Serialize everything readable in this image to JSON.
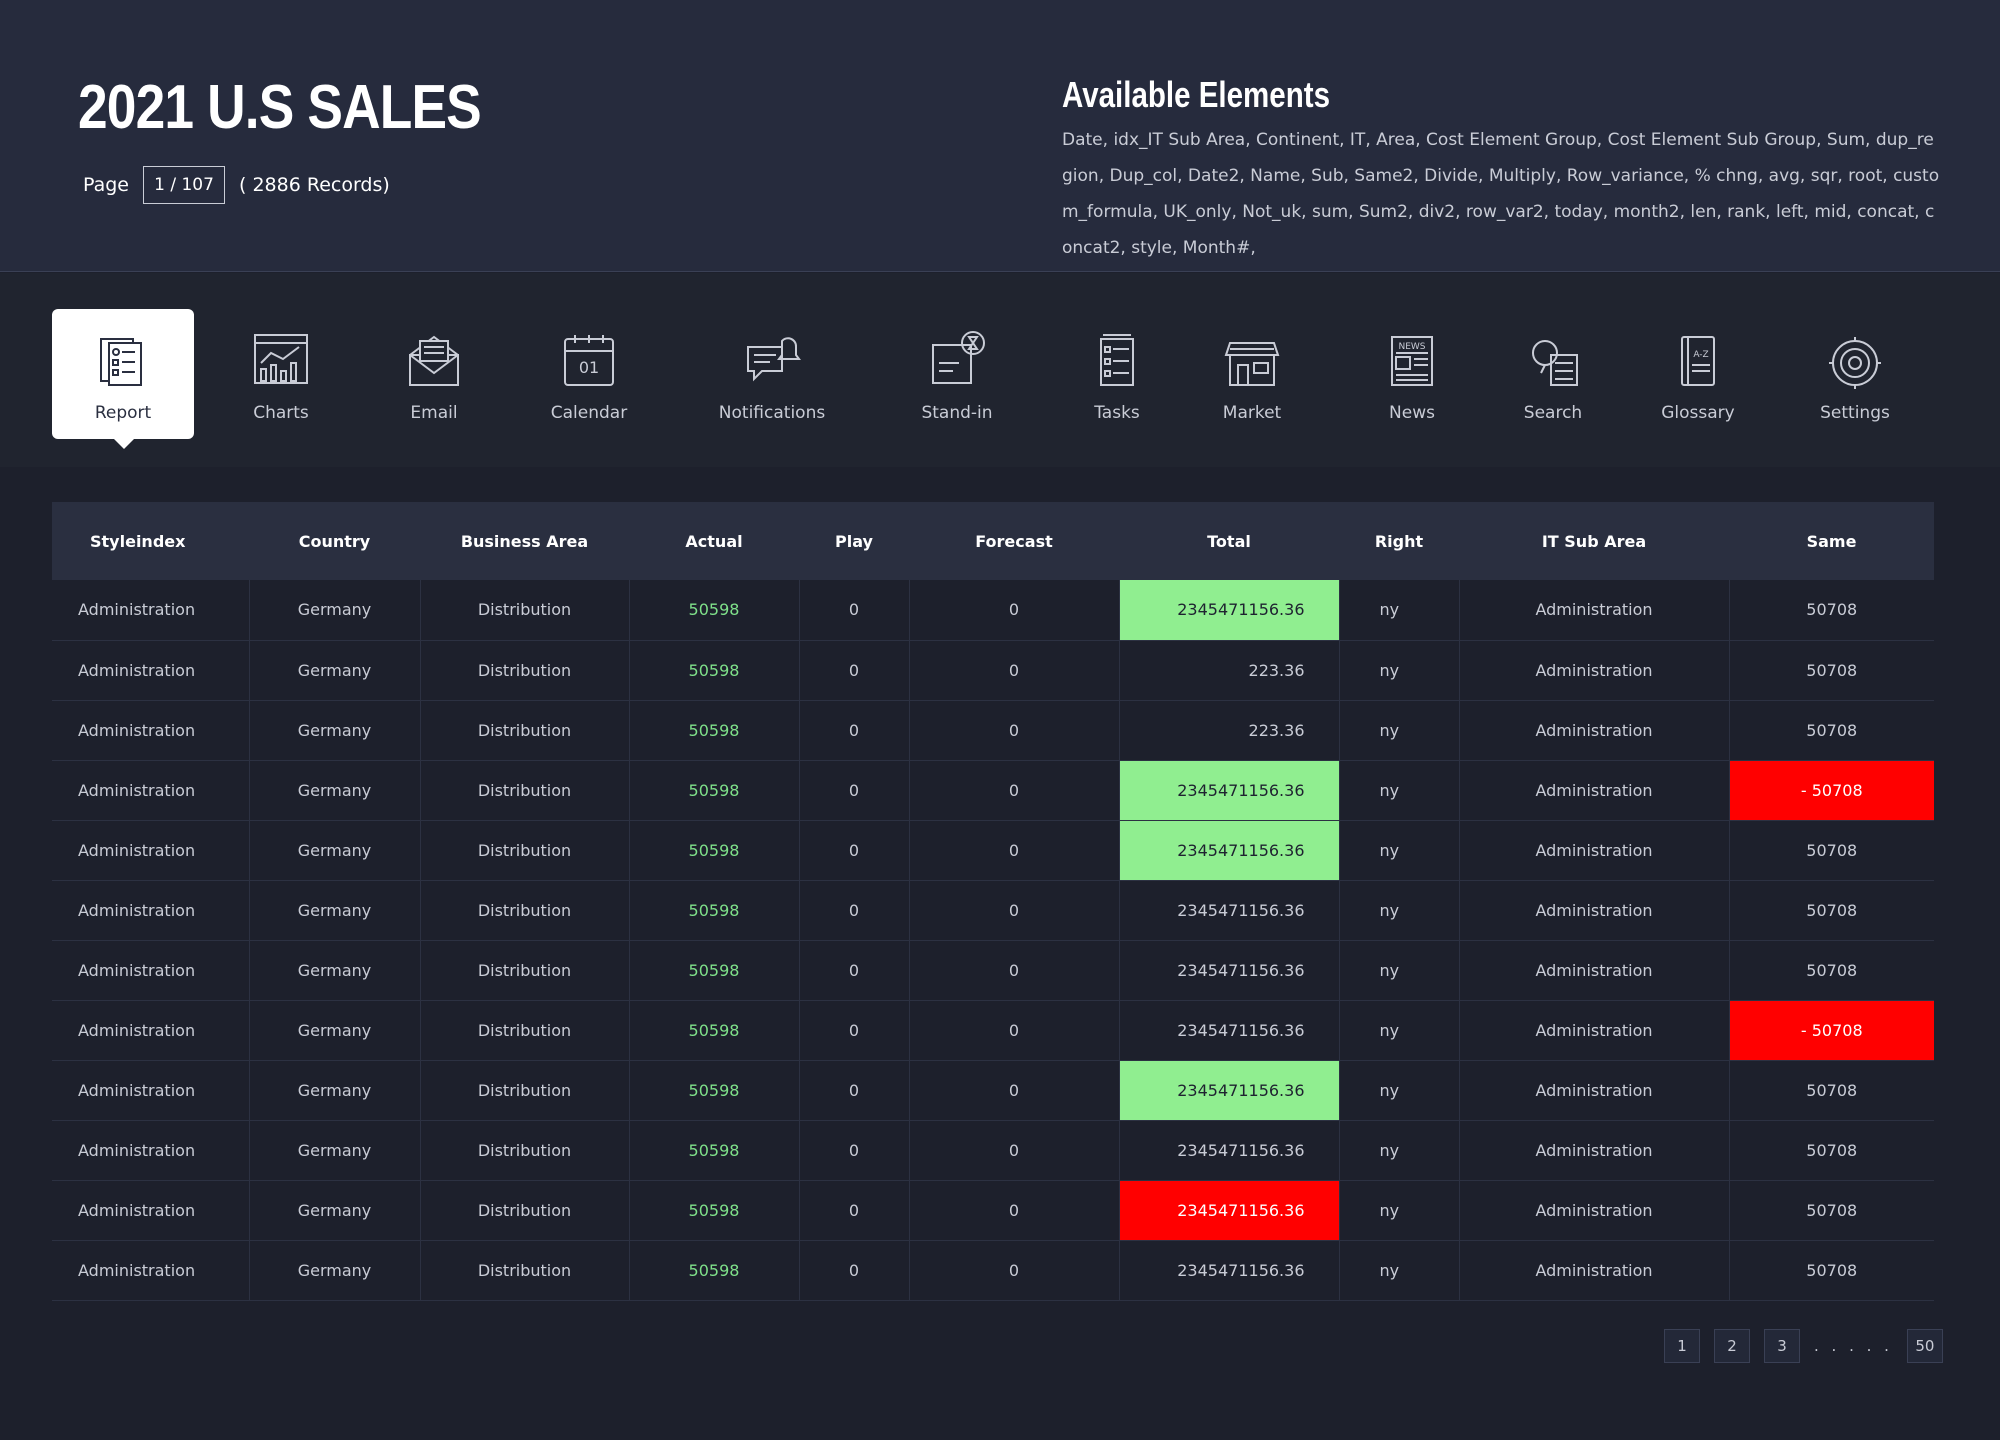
{
  "header": {
    "title": "2021 U.S SALES",
    "page_label": "Page",
    "page_value": "1 / 107",
    "records": "( 2886 Records)",
    "available_title": "Available Elements",
    "available_text": "Date, idx_IT Sub Area, Continent, IT, Area, Cost Element Group, Cost Element Sub Group, Sum, dup_region, Dup_col, Date2, Name, Sub, Same2, Divide, Multiply, Row_variance, % chng, avg, sqr, root, custom_formula, UK_only, Not_uk, sum, Sum2, div2, row_var2, today, month2, len, rank, left, mid, concat, concat2, style, Month#,"
  },
  "toolbar": {
    "items": [
      {
        "label": "Report",
        "icon": "report-icon"
      },
      {
        "label": "Charts",
        "icon": "charts-icon"
      },
      {
        "label": "Email",
        "icon": "email-icon"
      },
      {
        "label": "Calendar",
        "icon": "calendar-icon"
      },
      {
        "label": "Notifications",
        "icon": "notifications-icon"
      },
      {
        "label": "Stand-in",
        "icon": "stand-in-icon"
      },
      {
        "label": "Tasks",
        "icon": "tasks-icon"
      },
      {
        "label": "Market",
        "icon": "market-icon"
      },
      {
        "label": "News",
        "icon": "news-icon"
      },
      {
        "label": "Search",
        "icon": "search-icon"
      },
      {
        "label": "Glossary",
        "icon": "glossary-icon"
      },
      {
        "label": "Settings",
        "icon": "settings-icon"
      }
    ],
    "active": "Report"
  },
  "table": {
    "columns": [
      "Styleindex",
      "Country",
      "Business Area",
      "Actual",
      "Play",
      "Forecast",
      "Total",
      "Right",
      "IT Sub Area",
      "Same"
    ],
    "rows": [
      {
        "styleindex": "Administration",
        "country": "Germany",
        "business_area": "Distribution",
        "actual": "50598",
        "play": "0",
        "forecast": "0",
        "total": "2345471156.36",
        "total_status": "green",
        "right": "ny",
        "it_sub_area": "Administration",
        "same": "50708",
        "same_status": ""
      },
      {
        "styleindex": "Administration",
        "country": "Germany",
        "business_area": "Distribution",
        "actual": "50598",
        "play": "0",
        "forecast": "0",
        "total": "223.36",
        "total_status": "",
        "right": "ny",
        "it_sub_area": "Administration",
        "same": "50708",
        "same_status": ""
      },
      {
        "styleindex": "Administration",
        "country": "Germany",
        "business_area": "Distribution",
        "actual": "50598",
        "play": "0",
        "forecast": "0",
        "total": "223.36",
        "total_status": "",
        "right": "ny",
        "it_sub_area": "Administration",
        "same": "50708",
        "same_status": ""
      },
      {
        "styleindex": "Administration",
        "country": "Germany",
        "business_area": "Distribution",
        "actual": "50598",
        "play": "0",
        "forecast": "0",
        "total": "2345471156.36",
        "total_status": "green",
        "right": "ny",
        "it_sub_area": "Administration",
        "same": "- 50708",
        "same_status": "red"
      },
      {
        "styleindex": "Administration",
        "country": "Germany",
        "business_area": "Distribution",
        "actual": "50598",
        "play": "0",
        "forecast": "0",
        "total": "2345471156.36",
        "total_status": "green",
        "right": "ny",
        "it_sub_area": "Administration",
        "same": "50708",
        "same_status": ""
      },
      {
        "styleindex": "Administration",
        "country": "Germany",
        "business_area": "Distribution",
        "actual": "50598",
        "play": "0",
        "forecast": "0",
        "total": "2345471156.36",
        "total_status": "",
        "right": "ny",
        "it_sub_area": "Administration",
        "same": "50708",
        "same_status": ""
      },
      {
        "styleindex": "Administration",
        "country": "Germany",
        "business_area": "Distribution",
        "actual": "50598",
        "play": "0",
        "forecast": "0",
        "total": "2345471156.36",
        "total_status": "",
        "right": "ny",
        "it_sub_area": "Administration",
        "same": "50708",
        "same_status": ""
      },
      {
        "styleindex": "Administration",
        "country": "Germany",
        "business_area": "Distribution",
        "actual": "50598",
        "play": "0",
        "forecast": "0",
        "total": "2345471156.36",
        "total_status": "",
        "right": "ny",
        "it_sub_area": "Administration",
        "same": "- 50708",
        "same_status": "red"
      },
      {
        "styleindex": "Administration",
        "country": "Germany",
        "business_area": "Distribution",
        "actual": "50598",
        "play": "0",
        "forecast": "0",
        "total": "2345471156.36",
        "total_status": "green",
        "right": "ny",
        "it_sub_area": "Administration",
        "same": "50708",
        "same_status": ""
      },
      {
        "styleindex": "Administration",
        "country": "Germany",
        "business_area": "Distribution",
        "actual": "50598",
        "play": "0",
        "forecast": "0",
        "total": "2345471156.36",
        "total_status": "",
        "right": "ny",
        "it_sub_area": "Administration",
        "same": "50708",
        "same_status": ""
      },
      {
        "styleindex": "Administration",
        "country": "Germany",
        "business_area": "Distribution",
        "actual": "50598",
        "play": "0",
        "forecast": "0",
        "total": "2345471156.36",
        "total_status": "red",
        "right": "ny",
        "it_sub_area": "Administration",
        "same": "50708",
        "same_status": ""
      },
      {
        "styleindex": "Administration",
        "country": "Germany",
        "business_area": "Distribution",
        "actual": "50598",
        "play": "0",
        "forecast": "0",
        "total": "2345471156.36",
        "total_status": "",
        "right": "ny",
        "it_sub_area": "Administration",
        "same": "50708",
        "same_status": ""
      }
    ]
  },
  "pagination": {
    "pages": [
      "1",
      "2",
      "3"
    ],
    "ellipsis": ". . . . .",
    "last": "50"
  },
  "colors": {
    "background": "#1d202c",
    "header": "#262b3d",
    "positive_cell": "#90ee90",
    "negative_cell": "#ff0000",
    "actual_text": "#7fe08a"
  }
}
